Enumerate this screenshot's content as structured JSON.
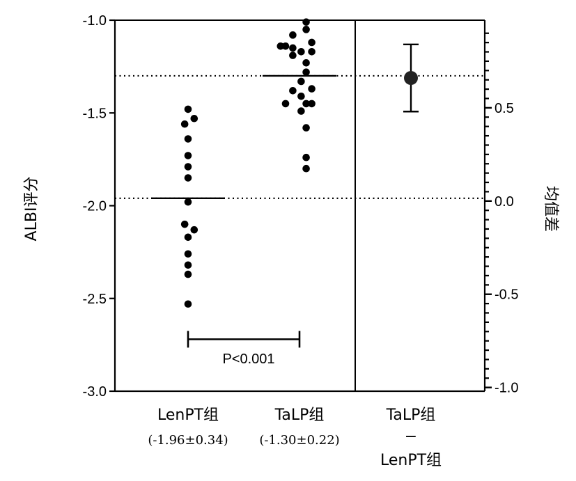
{
  "chart_data": {
    "type": "scatter",
    "left_axis": {
      "title": "ALBI评分",
      "ylim": [
        -3.0,
        -1.0
      ],
      "ticks": [
        -1.0,
        -1.5,
        -2.0,
        -2.5,
        -3.0
      ],
      "tick_labels": [
        "-1.0",
        "-1.5",
        "-2.0",
        "-2.5",
        "-3.0"
      ]
    },
    "right_axis": {
      "title": "均值差",
      "ylim": [
        -1.02,
        0.97
      ],
      "ticks": [
        0.5,
        0.0,
        -0.5,
        -1.0
      ],
      "tick_labels": [
        "0.5",
        "0.0",
        "-0.5",
        "-1.0"
      ]
    },
    "categories": [
      {
        "name": "LenPT组",
        "sub": "(-1.96±0.34)"
      },
      {
        "name": "TaLP组",
        "sub": "(-1.30±0.22)"
      },
      {
        "name": "TaLP组",
        "sub": "−",
        "sub2": "LenPT组"
      }
    ],
    "series": [
      {
        "group": 0,
        "mean": -1.96,
        "points": [
          {
            "x": 0.0,
            "y": -1.48
          },
          {
            "x": -0.06,
            "y": -1.56
          },
          {
            "x": 0.11,
            "y": -1.53
          },
          {
            "x": 0.0,
            "y": -1.64
          },
          {
            "x": 0.0,
            "y": -1.73
          },
          {
            "x": 0.0,
            "y": -1.79
          },
          {
            "x": 0.0,
            "y": -1.85
          },
          {
            "x": 0.0,
            "y": -1.98
          },
          {
            "x": -0.06,
            "y": -2.1
          },
          {
            "x": 0.11,
            "y": -2.13
          },
          {
            "x": 0.0,
            "y": -2.17
          },
          {
            "x": 0.0,
            "y": -2.26
          },
          {
            "x": 0.0,
            "y": -2.32
          },
          {
            "x": 0.0,
            "y": -2.37
          },
          {
            "x": 0.0,
            "y": -2.53
          }
        ]
      },
      {
        "group": 1,
        "mean": -1.3,
        "points": [
          {
            "x": 0.12,
            "y": -1.01
          },
          {
            "x": 0.12,
            "y": -1.05
          },
          {
            "x": -0.12,
            "y": -1.08
          },
          {
            "x": 0.22,
            "y": -1.12
          },
          {
            "x": -0.34,
            "y": -1.14
          },
          {
            "x": -0.25,
            "y": -1.14
          },
          {
            "x": -0.12,
            "y": -1.15
          },
          {
            "x": 0.03,
            "y": -1.17
          },
          {
            "x": 0.22,
            "y": -1.17
          },
          {
            "x": -0.12,
            "y": -1.19
          },
          {
            "x": 0.12,
            "y": -1.23
          },
          {
            "x": 0.12,
            "y": -1.28
          },
          {
            "x": 0.03,
            "y": -1.33
          },
          {
            "x": 0.22,
            "y": -1.37
          },
          {
            "x": -0.12,
            "y": -1.38
          },
          {
            "x": 0.03,
            "y": -1.41
          },
          {
            "x": -0.25,
            "y": -1.45
          },
          {
            "x": 0.12,
            "y": -1.45
          },
          {
            "x": 0.22,
            "y": -1.45
          },
          {
            "x": 0.03,
            "y": -1.49
          },
          {
            "x": 0.12,
            "y": -1.58
          },
          {
            "x": 0.12,
            "y": -1.74
          },
          {
            "x": 0.12,
            "y": -1.8
          }
        ]
      }
    ],
    "mean_difference": {
      "estimate": 0.66,
      "ci": [
        0.48,
        0.84
      ]
    },
    "reference_lines": [
      -1.3,
      -1.96
    ],
    "significance": {
      "text": "P<0.001",
      "between": [
        0,
        1
      ],
      "y": -2.72
    }
  }
}
